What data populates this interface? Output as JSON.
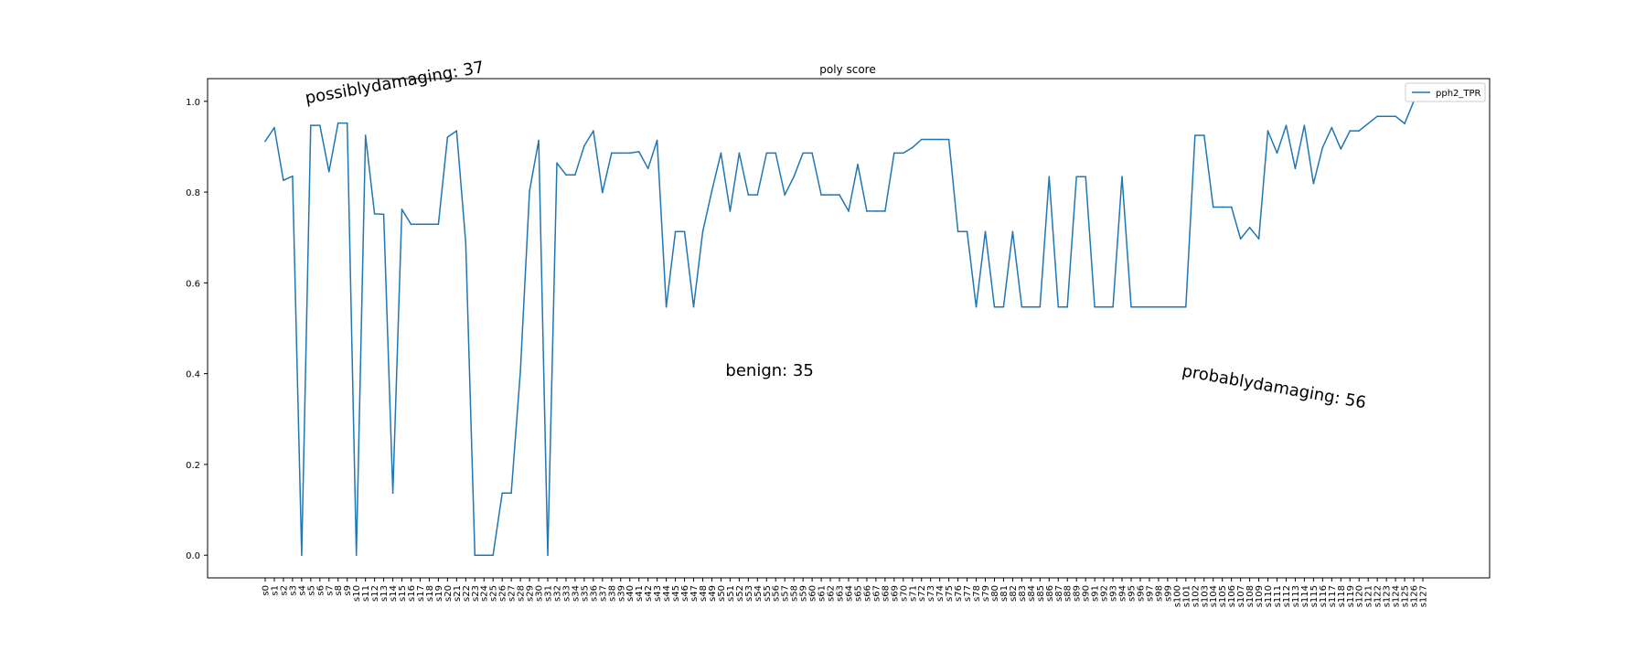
{
  "chart_data": {
    "type": "line",
    "title": "poly score",
    "xlabel": "",
    "ylabel": "",
    "ylim": [
      -0.05,
      1.05
    ],
    "yticks": [
      0.0,
      0.2,
      0.4,
      0.6,
      0.8,
      1.0
    ],
    "ytick_labels": [
      "0.0",
      "0.2",
      "0.4",
      "0.6",
      "0.8",
      "1.0"
    ],
    "grid": false,
    "legend_position": "top-right",
    "line_color": "#1f77b4",
    "categories": [
      "s0",
      "s1",
      "s2",
      "s3",
      "s4",
      "s5",
      "s6",
      "s7",
      "s8",
      "s9",
      "s10",
      "s11",
      "s12",
      "s13",
      "s14",
      "s15",
      "s16",
      "s17",
      "s18",
      "s19",
      "s20",
      "s21",
      "s22",
      "s23",
      "s24",
      "s25",
      "s26",
      "s27",
      "s28",
      "s29",
      "s30",
      "s31",
      "s32",
      "s33",
      "s34",
      "s35",
      "s36",
      "s37",
      "s38",
      "s39",
      "s40",
      "s41",
      "s42",
      "s43",
      "s44",
      "s45",
      "s46",
      "s47",
      "s48",
      "s49",
      "s50",
      "s51",
      "s52",
      "s53",
      "s54",
      "s55",
      "s56",
      "s57",
      "s58",
      "s59",
      "s60",
      "s61",
      "s62",
      "s63",
      "s64",
      "s65",
      "s66",
      "s67",
      "s68",
      "s69",
      "s70",
      "s71",
      "s72",
      "s73",
      "s74",
      "s75",
      "s76",
      "s77",
      "s78",
      "s79",
      "s80",
      "s81",
      "s82",
      "s83",
      "s84",
      "s85",
      "s86",
      "s87",
      "s88",
      "s89",
      "s90",
      "s91",
      "s92",
      "s93",
      "s94",
      "s95",
      "s96",
      "s97",
      "s98",
      "s99",
      "s100",
      "s101",
      "s102",
      "s103",
      "s104",
      "s105",
      "s106",
      "s107",
      "s108",
      "s109",
      "s110",
      "s111",
      "s112",
      "s113",
      "s114",
      "s115",
      "s116",
      "s117",
      "s118",
      "s119",
      "s120",
      "s121",
      "s122",
      "s123",
      "s124",
      "s125",
      "s126",
      "s127"
    ],
    "series": [
      {
        "name": "pph2_TPR",
        "values": [
          0.912,
          0.942,
          0.826,
          0.835,
          0.0,
          0.947,
          0.947,
          0.845,
          0.952,
          0.952,
          0.0,
          0.925,
          0.752,
          0.751,
          0.137,
          0.762,
          0.729,
          0.729,
          0.729,
          0.729,
          0.921,
          0.935,
          0.689,
          0.0,
          0.0,
          0.0,
          0.137,
          0.137,
          0.406,
          0.803,
          0.914,
          0.0,
          0.864,
          0.838,
          0.838,
          0.902,
          0.935,
          0.799,
          0.886,
          0.886,
          0.886,
          0.889,
          0.852,
          0.914,
          0.547,
          0.713,
          0.713,
          0.547,
          0.713,
          0.803,
          0.886,
          0.758,
          0.886,
          0.794,
          0.794,
          0.886,
          0.886,
          0.794,
          0.834,
          0.886,
          0.886,
          0.794,
          0.794,
          0.794,
          0.758,
          0.861,
          0.758,
          0.758,
          0.758,
          0.886,
          0.886,
          0.898,
          0.916,
          0.916,
          0.916,
          0.916,
          0.713,
          0.713,
          0.547,
          0.713,
          0.547,
          0.547,
          0.713,
          0.547,
          0.547,
          0.547,
          0.834,
          0.547,
          0.547,
          0.834,
          0.834,
          0.547,
          0.547,
          0.547,
          0.834,
          0.547,
          0.547,
          0.547,
          0.547,
          0.547,
          0.547,
          0.547,
          0.925,
          0.925,
          0.767,
          0.767,
          0.767,
          0.697,
          0.722,
          0.697,
          0.935,
          0.886,
          0.947,
          0.852,
          0.947,
          0.819,
          0.898,
          0.942,
          0.895,
          0.935,
          0.935,
          0.951,
          0.967,
          0.967,
          0.967,
          0.951,
          1.0,
          1.0
        ]
      }
    ],
    "annotations": [
      {
        "text": "possiblydamaging: 37",
        "x": 4.5,
        "y": 0.995,
        "rotation": -10
      },
      {
        "text": "benign: 35",
        "x": 50.5,
        "y": 0.395,
        "rotation": 0
      },
      {
        "text": "probablydamaging: 56",
        "x": 100.5,
        "y": 0.395,
        "rotation": 10
      }
    ]
  }
}
